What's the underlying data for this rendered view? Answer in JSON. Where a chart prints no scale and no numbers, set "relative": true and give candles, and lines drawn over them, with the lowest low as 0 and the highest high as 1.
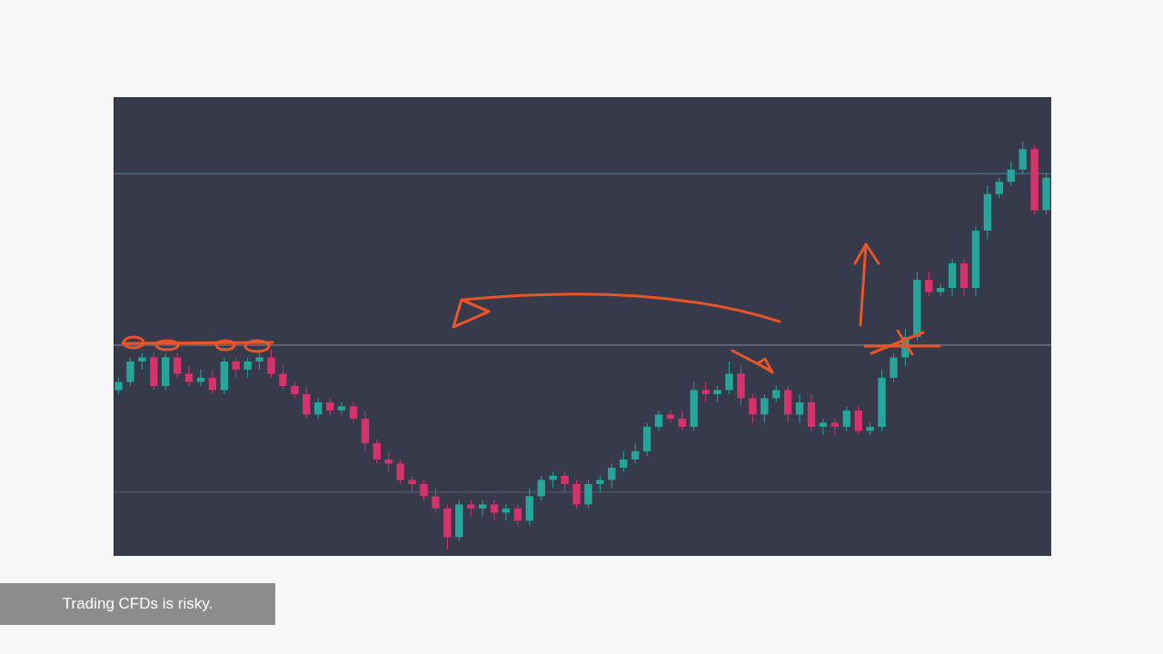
{
  "chart_data": {
    "type": "candlestick",
    "relative": true,
    "categories": [
      null,
      null,
      null,
      null,
      null,
      null,
      null,
      null,
      null,
      null,
      null,
      null,
      null,
      null,
      null,
      null,
      null,
      null,
      null,
      null,
      null,
      null,
      null,
      null,
      null,
      null,
      null,
      null,
      null,
      null,
      null,
      null,
      null,
      null,
      null,
      null,
      null,
      null,
      null,
      null,
      null,
      null,
      null,
      null,
      null,
      null,
      null,
      null,
      null,
      null,
      null,
      null,
      null,
      null,
      null,
      null,
      null,
      null,
      null,
      null,
      null,
      null,
      null,
      null,
      null,
      null,
      null,
      null,
      null,
      null,
      null,
      null,
      null,
      null,
      null,
      null,
      null,
      null,
      null,
      null
    ],
    "ohlc": [
      [
        0.39,
        0.42,
        0.38,
        0.41
      ],
      [
        0.41,
        0.47,
        0.4,
        0.46
      ],
      [
        0.46,
        0.48,
        0.44,
        0.47
      ],
      [
        0.47,
        0.48,
        0.39,
        0.4
      ],
      [
        0.4,
        0.48,
        0.39,
        0.47
      ],
      [
        0.47,
        0.48,
        0.42,
        0.43
      ],
      [
        0.43,
        0.45,
        0.4,
        0.41
      ],
      [
        0.41,
        0.44,
        0.4,
        0.42
      ],
      [
        0.42,
        0.44,
        0.38,
        0.39
      ],
      [
        0.39,
        0.47,
        0.38,
        0.46
      ],
      [
        0.46,
        0.47,
        0.42,
        0.44
      ],
      [
        0.44,
        0.47,
        0.42,
        0.46
      ],
      [
        0.46,
        0.49,
        0.44,
        0.47
      ],
      [
        0.47,
        0.49,
        0.42,
        0.43
      ],
      [
        0.43,
        0.45,
        0.39,
        0.4
      ],
      [
        0.4,
        0.41,
        0.37,
        0.38
      ],
      [
        0.38,
        0.4,
        0.32,
        0.33
      ],
      [
        0.33,
        0.37,
        0.32,
        0.36
      ],
      [
        0.36,
        0.37,
        0.33,
        0.34
      ],
      [
        0.34,
        0.36,
        0.33,
        0.35
      ],
      [
        0.35,
        0.36,
        0.31,
        0.32
      ],
      [
        0.32,
        0.34,
        0.24,
        0.26
      ],
      [
        0.26,
        0.27,
        0.21,
        0.22
      ],
      [
        0.22,
        0.24,
        0.19,
        0.21
      ],
      [
        0.21,
        0.22,
        0.16,
        0.17
      ],
      [
        0.17,
        0.18,
        0.14,
        0.16
      ],
      [
        0.16,
        0.17,
        0.12,
        0.13
      ],
      [
        0.13,
        0.15,
        0.09,
        0.1
      ],
      [
        0.1,
        0.11,
        0,
        0.03
      ],
      [
        0.03,
        0.12,
        0.02,
        0.11
      ],
      [
        0.11,
        0.12,
        0.08,
        0.1
      ],
      [
        0.1,
        0.12,
        0.08,
        0.11
      ],
      [
        0.11,
        0.12,
        0.07,
        0.09
      ],
      [
        0.09,
        0.11,
        0.07,
        0.1
      ],
      [
        0.1,
        0.11,
        0.06,
        0.07
      ],
      [
        0.07,
        0.15,
        0.06,
        0.13
      ],
      [
        0.13,
        0.18,
        0.12,
        0.17
      ],
      [
        0.17,
        0.19,
        0.15,
        0.18
      ],
      [
        0.18,
        0.19,
        0.14,
        0.16
      ],
      [
        0.16,
        0.17,
        0.1,
        0.11
      ],
      [
        0.11,
        0.17,
        0.1,
        0.16
      ],
      [
        0.16,
        0.18,
        0.14,
        0.17
      ],
      [
        0.17,
        0.21,
        0.15,
        0.2
      ],
      [
        0.2,
        0.24,
        0.19,
        0.22
      ],
      [
        0.22,
        0.26,
        0.21,
        0.24
      ],
      [
        0.24,
        0.31,
        0.23,
        0.3
      ],
      [
        0.3,
        0.34,
        0.29,
        0.33
      ],
      [
        0.33,
        0.34,
        0.31,
        0.32
      ],
      [
        0.32,
        0.34,
        0.29,
        0.3
      ],
      [
        0.3,
        0.41,
        0.29,
        0.39
      ],
      [
        0.39,
        0.41,
        0.36,
        0.38
      ],
      [
        0.38,
        0.4,
        0.36,
        0.39
      ],
      [
        0.39,
        0.46,
        0.38,
        0.43
      ],
      [
        0.43,
        0.45,
        0.35,
        0.37
      ],
      [
        0.37,
        0.38,
        0.31,
        0.33
      ],
      [
        0.33,
        0.38,
        0.31,
        0.37
      ],
      [
        0.37,
        0.4,
        0.36,
        0.39
      ],
      [
        0.39,
        0.4,
        0.31,
        0.33
      ],
      [
        0.33,
        0.38,
        0.31,
        0.36
      ],
      [
        0.36,
        0.38,
        0.29,
        0.3
      ],
      [
        0.3,
        0.32,
        0.28,
        0.31
      ],
      [
        0.31,
        0.32,
        0.28,
        0.3
      ],
      [
        0.3,
        0.35,
        0.29,
        0.34
      ],
      [
        0.34,
        0.35,
        0.28,
        0.29
      ],
      [
        0.29,
        0.31,
        0.28,
        0.3
      ],
      [
        0.3,
        0.44,
        0.29,
        0.42
      ],
      [
        0.42,
        0.48,
        0.41,
        0.47
      ],
      [
        0.47,
        0.54,
        0.45,
        0.52
      ],
      [
        0.52,
        0.68,
        0.51,
        0.66
      ],
      [
        0.66,
        0.68,
        0.62,
        0.63
      ],
      [
        0.63,
        0.65,
        0.62,
        0.64
      ],
      [
        0.64,
        0.71,
        0.62,
        0.7
      ],
      [
        0.7,
        0.71,
        0.62,
        0.64
      ],
      [
        0.64,
        0.79,
        0.62,
        0.78
      ],
      [
        0.78,
        0.89,
        0.76,
        0.87
      ],
      [
        0.87,
        0.91,
        0.86,
        0.9
      ],
      [
        0.9,
        0.95,
        0.89,
        0.93
      ],
      [
        0.93,
        1,
        0.92,
        0.98
      ],
      [
        0.98,
        0.99,
        0.82,
        0.83
      ],
      [
        0.83,
        0.92,
        0.82,
        0.91
      ]
    ],
    "colors": [
      "#26a69a",
      "#26a69a",
      "#26a69a",
      "#d6336c",
      "#26a69a",
      "#d6336c",
      "#d6336c",
      "#26a69a",
      "#d6336c",
      "#26a69a",
      "#d6336c",
      "#26a69a",
      "#26a69a",
      "#d6336c",
      "#d6336c",
      "#d6336c",
      "#d6336c",
      "#26a69a",
      "#d6336c",
      "#26a69a",
      "#d6336c",
      "#d6336c",
      "#d6336c",
      "#d6336c",
      "#d6336c",
      "#d6336c",
      "#d6336c",
      "#d6336c",
      "#d6336c",
      "#26a69a",
      "#d6336c",
      "#26a69a",
      "#d6336c",
      "#26a69a",
      "#d6336c",
      "#26a69a",
      "#26a69a",
      "#26a69a",
      "#d6336c",
      "#d6336c",
      "#26a69a",
      "#26a69a",
      "#26a69a",
      "#26a69a",
      "#26a69a",
      "#26a69a",
      "#26a69a",
      "#d6336c",
      "#d6336c",
      "#26a69a",
      "#d6336c",
      "#26a69a",
      "#26a69a",
      "#d6336c",
      "#d6336c",
      "#26a69a",
      "#26a69a",
      "#d6336c",
      "#26a69a",
      "#d6336c",
      "#26a69a",
      "#d6336c",
      "#26a69a",
      "#d6336c",
      "#26a69a",
      "#26a69a",
      "#26a69a",
      "#26a69a",
      "#26a69a",
      "#d6336c",
      "#26a69a",
      "#26a69a",
      "#d6336c",
      "#26a69a",
      "#26a69a",
      "#26a69a",
      "#26a69a",
      "#26a69a",
      "#d6336c",
      "#26a69a"
    ],
    "ref_lines": [
      {
        "axis": "y",
        "value": 0.92,
        "color": "#2f8fa8"
      },
      {
        "axis": "y",
        "value": 0.5,
        "color": "#8a8d99"
      },
      {
        "axis": "y",
        "value": 0.14,
        "color": "#5d6070"
      }
    ],
    "annotations": [
      "Trading CFDs is risky."
    ]
  }
}
